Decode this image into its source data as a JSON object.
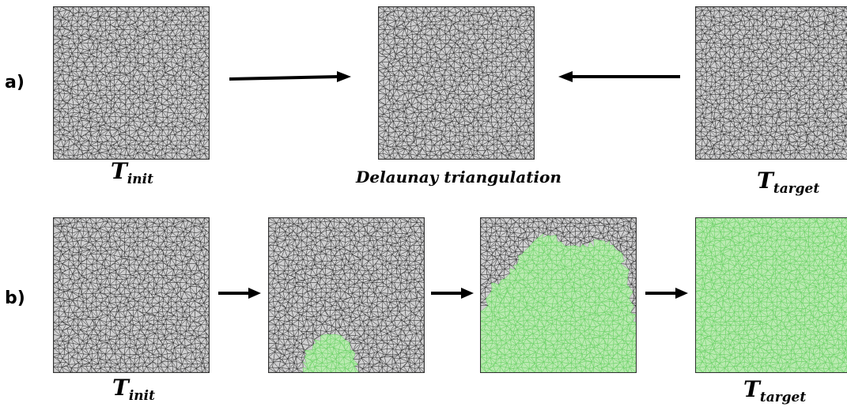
{
  "row_a": {
    "label": "a)",
    "captions": {
      "init_main": "T",
      "init_sub": "init",
      "delaunay": "Delaunay triangulation",
      "target_main": "T",
      "target_sub": "target"
    }
  },
  "row_b": {
    "label": "b)",
    "captions": {
      "init_main": "T",
      "init_sub": "init",
      "target_main": "T",
      "target_sub": "target"
    },
    "progress_stages": [
      0,
      0.08,
      0.55,
      1.0
    ]
  },
  "colors": {
    "mesh_fill": "#cfcfd0",
    "mesh_line": "#2b2b2b",
    "flipped_fill": "#b9eab0",
    "flipped_line": "#6fd36a"
  }
}
